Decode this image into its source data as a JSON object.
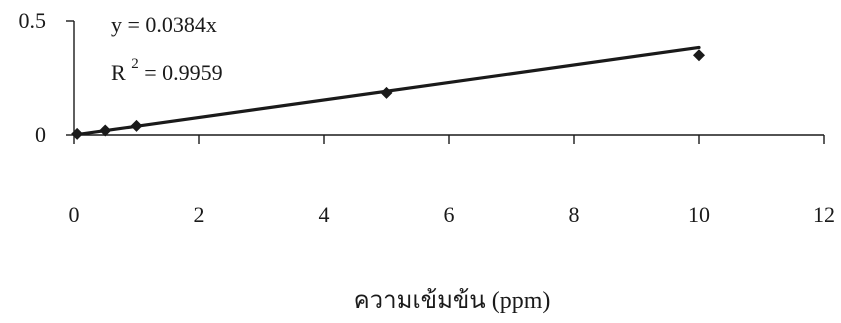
{
  "chart_data": {
    "type": "scatter",
    "title": "",
    "xlabel": "ความเข้มข้น (ppm)",
    "ylabel": "",
    "xlim": [
      0,
      12
    ],
    "ylim": [
      0,
      0.5
    ],
    "x_ticks": [
      "0",
      "2",
      "4",
      "6",
      "8",
      "10",
      "12"
    ],
    "y_ticks": [
      "0",
      "0.5"
    ],
    "grid": false,
    "series": [
      {
        "x": [
          0.05,
          0.5,
          1,
          5,
          10
        ],
        "y": [
          0.005,
          0.02,
          0.04,
          0.185,
          0.35
        ],
        "marker": "diamond",
        "color": "#1a1a1a"
      }
    ],
    "trendline": {
      "slope": 0.0384,
      "intercept": 0,
      "x_range": [
        0.05,
        10
      ],
      "color": "#1a1a1a"
    },
    "annotations": {
      "equation": "y = 0.0384x",
      "r2_prefix": "R",
      "r2_superscript": "2",
      "r2_value": " = 0.9959"
    }
  }
}
